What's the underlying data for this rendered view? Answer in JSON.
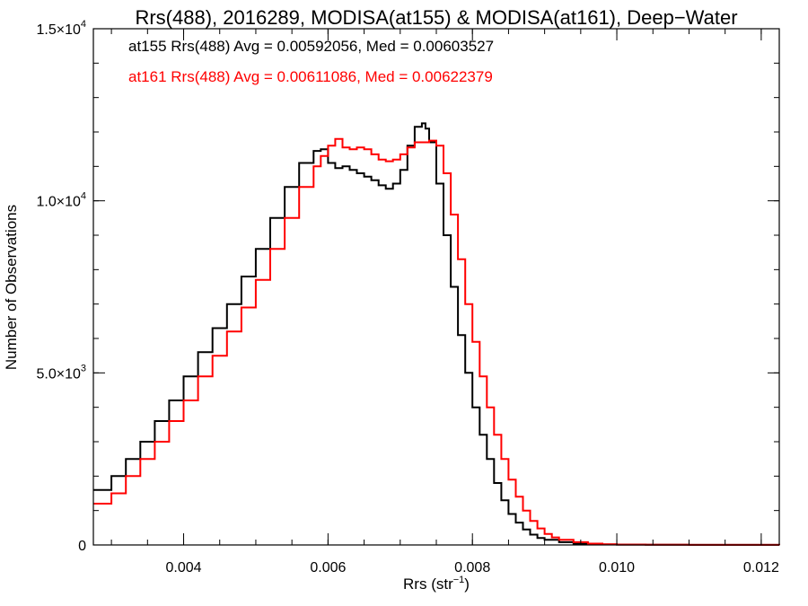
{
  "chart_data": {
    "type": "line",
    "step": true,
    "title": "Rrs(488), 2016289, MODISA(at155) & MODISA(at161), Deep−Water",
    "xlabel": {
      "base": "Rrs (str",
      "sup": "−1",
      "close": ")"
    },
    "ylabel": "Number of Observations",
    "xlim": [
      0.00275,
      0.01225
    ],
    "ylim": [
      0,
      15000
    ],
    "x_tick_values": [
      0.004,
      0.006,
      0.008,
      0.01,
      0.012
    ],
    "x_tick_labels": [
      "0.004",
      "0.006",
      "0.008",
      "0.010",
      "0.012"
    ],
    "x_minor_step": 0.0005,
    "y_tick_values": [
      0,
      5000,
      10000,
      15000
    ],
    "y_tick_labels": [
      {
        "mantissa": "0",
        "exp": ""
      },
      {
        "mantissa": "5.0×10",
        "exp": "3"
      },
      {
        "mantissa": "1.0×10",
        "exp": "4"
      },
      {
        "mantissa": "1.5×10",
        "exp": "4"
      }
    ],
    "y_minor_step": 1000,
    "legend": {
      "placement": "top-left"
    },
    "annotations": [
      {
        "text": "at155 Rrs(488) Avg = 0.00592056, Med = 0.00603527",
        "color": "#000000"
      },
      {
        "text": "at161 Rrs(488) Avg = 0.00611086, Med = 0.00622379",
        "color": "#ff0000"
      }
    ],
    "series": [
      {
        "color": "#000000",
        "x": [
          0.00275,
          0.003,
          0.0032,
          0.0034,
          0.0036,
          0.0038,
          0.004,
          0.0042,
          0.0044,
          0.0046,
          0.0048,
          0.005,
          0.0052,
          0.0054,
          0.0056,
          0.0058,
          0.0059,
          0.006,
          0.0061,
          0.0062,
          0.0063,
          0.0064,
          0.0065,
          0.0066,
          0.0067,
          0.0068,
          0.0069,
          0.007,
          0.0071,
          0.0072,
          0.0073,
          0.00735,
          0.0074,
          0.0075,
          0.0076,
          0.0077,
          0.0078,
          0.0079,
          0.008,
          0.0081,
          0.0082,
          0.0083,
          0.0084,
          0.0085,
          0.0086,
          0.0087,
          0.0088,
          0.0089,
          0.009,
          0.0092,
          0.0094,
          0.0096,
          0.0098,
          0.01,
          0.0104,
          0.011,
          0.01225
        ],
        "y": [
          1600,
          2000,
          2500,
          3000,
          3600,
          4200,
          4900,
          5600,
          6300,
          7000,
          7800,
          8600,
          9500,
          10400,
          11100,
          11450,
          11500,
          11100,
          10950,
          11000,
          10900,
          10800,
          10700,
          10600,
          10450,
          10350,
          10500,
          10900,
          11600,
          12150,
          12250,
          12100,
          11700,
          10500,
          9000,
          7500,
          6100,
          5000,
          4000,
          3200,
          2500,
          1800,
          1300,
          900,
          650,
          450,
          300,
          200,
          150,
          80,
          40,
          25,
          15,
          10,
          5,
          2,
          0
        ]
      },
      {
        "color": "#ff0000",
        "x": [
          0.00275,
          0.003,
          0.0032,
          0.0034,
          0.0036,
          0.0038,
          0.004,
          0.0042,
          0.0044,
          0.0046,
          0.0048,
          0.005,
          0.0052,
          0.0054,
          0.0056,
          0.0058,
          0.0059,
          0.006,
          0.0061,
          0.0062,
          0.0063,
          0.0064,
          0.0065,
          0.0066,
          0.0067,
          0.0068,
          0.0069,
          0.007,
          0.0071,
          0.0072,
          0.0073,
          0.0074,
          0.0075,
          0.0076,
          0.0077,
          0.0078,
          0.0079,
          0.008,
          0.0081,
          0.0082,
          0.0083,
          0.0084,
          0.0085,
          0.0086,
          0.0087,
          0.0088,
          0.0089,
          0.009,
          0.0091,
          0.0092,
          0.0094,
          0.0096,
          0.0098,
          0.01,
          0.0104,
          0.011,
          0.01225
        ],
        "y": [
          1200,
          1500,
          2000,
          2500,
          3000,
          3600,
          4200,
          4900,
          5500,
          6200,
          6900,
          7700,
          8600,
          9500,
          10400,
          11000,
          11300,
          11600,
          11800,
          11550,
          11500,
          11550,
          11500,
          11350,
          11200,
          11150,
          11200,
          11350,
          11550,
          11700,
          11700,
          11750,
          11600,
          10800,
          9600,
          8300,
          7000,
          5900,
          4900,
          4000,
          3200,
          2500,
          1900,
          1400,
          1000,
          700,
          480,
          320,
          220,
          150,
          80,
          40,
          20,
          10,
          5,
          2,
          0
        ]
      }
    ]
  }
}
